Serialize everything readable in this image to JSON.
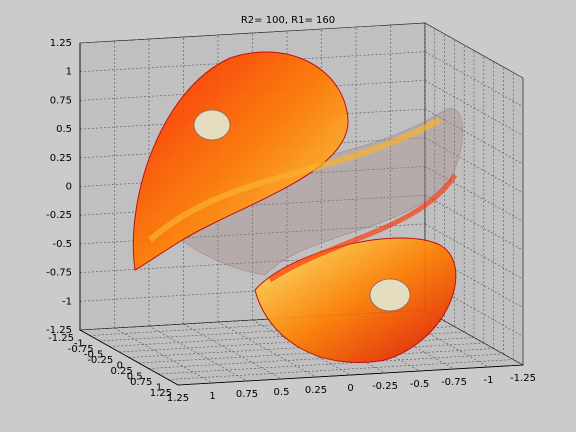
{
  "chart_data": {
    "type": "line3d",
    "title": "R2= 100, R1= 160",
    "xlim": [
      -1.25,
      1.25
    ],
    "ylim": [
      -1.25,
      1.25
    ],
    "zlim": [
      -1.25,
      1.25
    ],
    "x_reversed": true,
    "grid": true,
    "xticks": [
      1.25,
      1,
      0.75,
      0.5,
      0.25,
      0,
      -0.25,
      -0.5,
      -0.75,
      -1,
      -1.25
    ],
    "yticks": [
      -1.25,
      -1,
      -0.75,
      -0.5,
      -0.25,
      0,
      0.25,
      0.5,
      0.75,
      1,
      1.25
    ],
    "zticks": [
      1.25,
      1,
      0.75,
      0.5,
      0.25,
      0,
      -0.25,
      -0.5,
      -0.75,
      -1,
      -1.25
    ],
    "colors": [
      "#ff0000",
      "#ff8800",
      "#ffff66"
    ]
  }
}
